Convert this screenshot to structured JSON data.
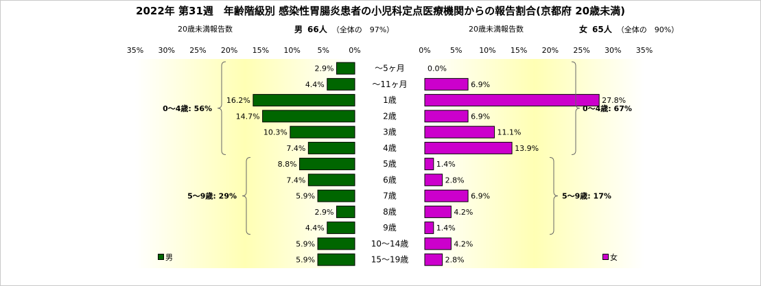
{
  "title": "2022年 第31週　年齢階級別 感染性胃腸炎患者の小児科定点医療機関からの報告割合(京都府 20歳未満)",
  "male_header": {
    "label": "20歳未満報告数",
    "gender": "男",
    "count": "66人",
    "share": "（全体の　97%）"
  },
  "female_header": {
    "label": "20歳未満報告数",
    "gender": "女",
    "count": "65人",
    "share": "（全体の　90%）"
  },
  "chart_data": [
    {
      "type": "bar",
      "orientation": "horizontal",
      "direction": "right-to-left",
      "series": [
        {
          "name": "男",
          "values": [
            2.9,
            4.4,
            16.2,
            14.7,
            10.3,
            7.4,
            8.8,
            7.4,
            5.9,
            2.9,
            4.4,
            5.9,
            5.9
          ],
          "color": "#006600"
        }
      ],
      "categories": [
        "～5ヶ月",
        "～11ヶ月",
        "1歳",
        "2歳",
        "3歳",
        "4歳",
        "5歳",
        "6歳",
        "7歳",
        "8歳",
        "9歳",
        "10～14歳",
        "15～19歳"
      ],
      "data_labels": [
        "2.9%",
        "4.4%",
        "16.2%",
        "14.7%",
        "10.3%",
        "7.4%",
        "8.8%",
        "7.4%",
        "5.9%",
        "2.9%",
        "4.4%",
        "5.9%",
        "5.9%"
      ],
      "xlim": [
        0,
        35
      ],
      "tick_labels": [
        "0%",
        "5%",
        "10%",
        "15%",
        "20%",
        "25%",
        "30%",
        "35%"
      ],
      "legend_label": "男",
      "legend_position": "bottom-left",
      "annotations": [
        {
          "text": "0～4歳: 56%",
          "rows": [
            0,
            5
          ]
        },
        {
          "text": "5～9歳: 29%",
          "rows": [
            6,
            10
          ]
        }
      ]
    },
    {
      "type": "bar",
      "orientation": "horizontal",
      "direction": "left-to-right",
      "series": [
        {
          "name": "女",
          "values": [
            0.0,
            6.9,
            27.8,
            6.9,
            11.1,
            13.9,
            1.4,
            2.8,
            6.9,
            4.2,
            1.4,
            4.2,
            2.8
          ],
          "color": "#cc00cc"
        }
      ],
      "categories": [
        "～5ヶ月",
        "～11ヶ月",
        "1歳",
        "2歳",
        "3歳",
        "4歳",
        "5歳",
        "6歳",
        "7歳",
        "8歳",
        "9歳",
        "10～14歳",
        "15～19歳"
      ],
      "data_labels": [
        "0.0%",
        "6.9%",
        "27.8%",
        "6.9%",
        "11.1%",
        "13.9%",
        "1.4%",
        "2.8%",
        "6.9%",
        "4.2%",
        "1.4%",
        "4.2%",
        "2.8%"
      ],
      "xlim": [
        0,
        35
      ],
      "tick_labels": [
        "0%",
        "5%",
        "10%",
        "15%",
        "20%",
        "25%",
        "30%",
        "35%"
      ],
      "legend_label": "女",
      "legend_position": "bottom-right",
      "annotations": [
        {
          "text": "0～4歳: 67%",
          "rows": [
            0,
            5
          ]
        },
        {
          "text": "5～9歳: 17%",
          "rows": [
            6,
            10
          ]
        }
      ]
    }
  ],
  "colors": {
    "male_bar": "#006600",
    "female_bar": "#cc00cc",
    "plot_center": "#ffffb4",
    "plot_edge": "#ffffff"
  }
}
